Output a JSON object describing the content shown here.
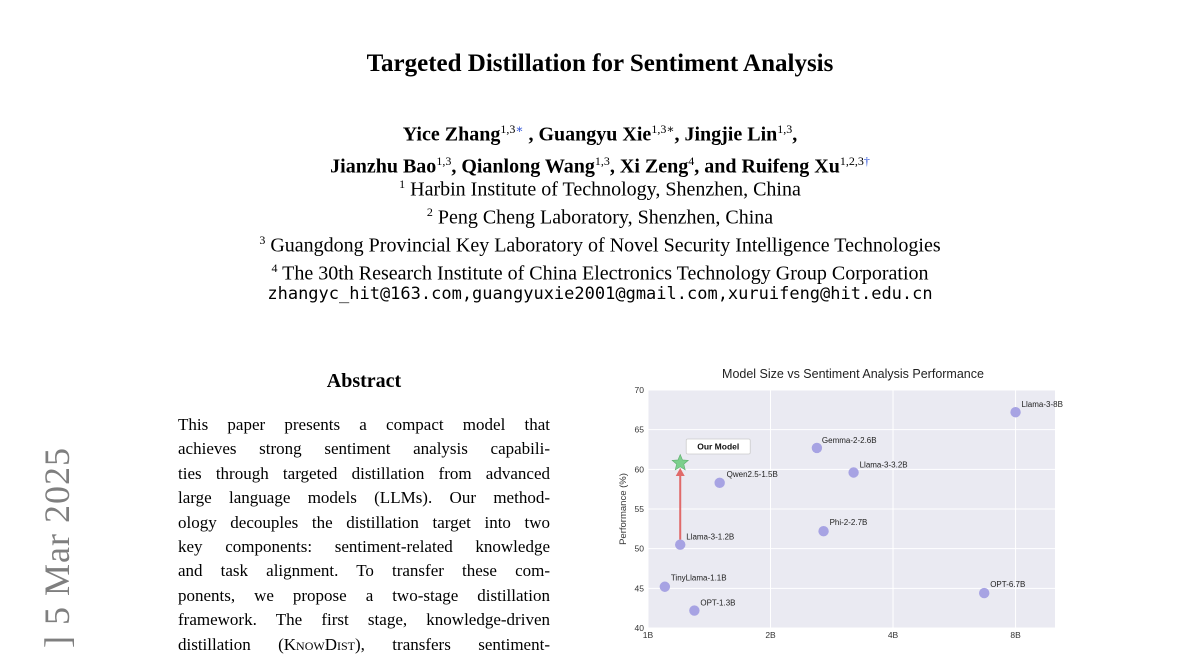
{
  "sidebar": {
    "arxiv_stamp": "] 5 Mar 2025"
  },
  "paper": {
    "title": "Targeted Distillation for Sentiment Analysis",
    "authors": [
      {
        "name": "Yice Zhang",
        "sup": "1,3",
        "mark": "∗",
        "after": " ,"
      },
      {
        "name": "Guangyu Xie",
        "sup": "1,3∗",
        "mark": "",
        "after": ","
      },
      {
        "name": "Jingjie Lin",
        "sup": "1,3",
        "mark": "",
        "after": ","
      },
      {
        "name": "Jianzhu Bao",
        "sup": "1,3",
        "mark": "",
        "after": ","
      },
      {
        "name": "Qianlong Wang",
        "sup": "1,3",
        "mark": "",
        "after": ","
      },
      {
        "name": "Xi Zeng",
        "sup": "4",
        "mark": "",
        "after": ", and"
      },
      {
        "name": "Ruifeng Xu",
        "sup": "1,2,3",
        "mark": "†",
        "after": ""
      }
    ],
    "affiliations": [
      {
        "num": "1",
        "text": "Harbin Institute of Technology, Shenzhen, China"
      },
      {
        "num": "2",
        "text": "Peng Cheng Laboratory, Shenzhen, China"
      },
      {
        "num": "3",
        "text": "Guangdong Provincial Key Laboratory of Novel Security Intelligence Technologies"
      },
      {
        "num": "4",
        "text": "The 30th Research Institute of China Electronics Technology Group Corporation"
      }
    ],
    "emails": "zhangyc_hit@163.com,guangyuxie2001@gmail.com,xuruifeng@hit.edu.cn",
    "abstract": {
      "heading": "Abstract",
      "lines": [
        "This paper presents a compact model that",
        "achieves strong sentiment analysis capabili-",
        "ties through targeted distillation from advanced",
        "large language models (LLMs). Our method-",
        "ology decouples the distillation target into two",
        "key components: sentiment-related knowledge",
        "and task alignment. To transfer these com-",
        "ponents, we propose a two-stage distillation",
        "framework. The first stage, knowledge-driven"
      ],
      "last_line_pre": "distillation (",
      "last_line_sc": "KnowDist",
      "last_line_post": "), transfers sentiment-"
    }
  },
  "chart_data": {
    "type": "scatter",
    "title": "Model Size vs Sentiment Analysis Performance",
    "ylabel": "Performance (%)",
    "xlabel": "",
    "x_scale": "log",
    "xlim": [
      "1B",
      "10B"
    ],
    "x_ticks": [
      "1B",
      "2B",
      "4B",
      "8B"
    ],
    "ylim": [
      40,
      70
    ],
    "y_ticks": [
      40,
      45,
      50,
      55,
      60,
      65,
      70
    ],
    "grid": true,
    "points": [
      {
        "label": "Llama-3-8B",
        "x": 8,
        "y": 67.2
      },
      {
        "label": "Gemma-2-2.6B",
        "x": 2.6,
        "y": 62.7
      },
      {
        "label": "Llama-3-3.2B",
        "x": 3.2,
        "y": 59.6
      },
      {
        "label": "Qwen2.5-1.5B",
        "x": 1.5,
        "y": 58.3
      },
      {
        "label": "Phi-2-2.7B",
        "x": 2.7,
        "y": 52.2
      },
      {
        "label": "Llama-3-1.2B",
        "x": 1.2,
        "y": 50.5
      },
      {
        "label": "TinyLlama-1.1B",
        "x": 1.1,
        "y": 45.2
      },
      {
        "label": "OPT-6.7B",
        "x": 6.7,
        "y": 44.4
      },
      {
        "label": "OPT-1.3B",
        "x": 1.3,
        "y": 42.2
      }
    ],
    "highlight": {
      "label": "Our Model",
      "x": 1.2,
      "y": 60.8,
      "from_y": 50.5
    },
    "colors": {
      "point": "#a7a3e3",
      "star": "#7ccf8c",
      "arrow": "#e06a6a",
      "plot_bg": "#eaeaf2",
      "grid": "#ffffff"
    }
  }
}
